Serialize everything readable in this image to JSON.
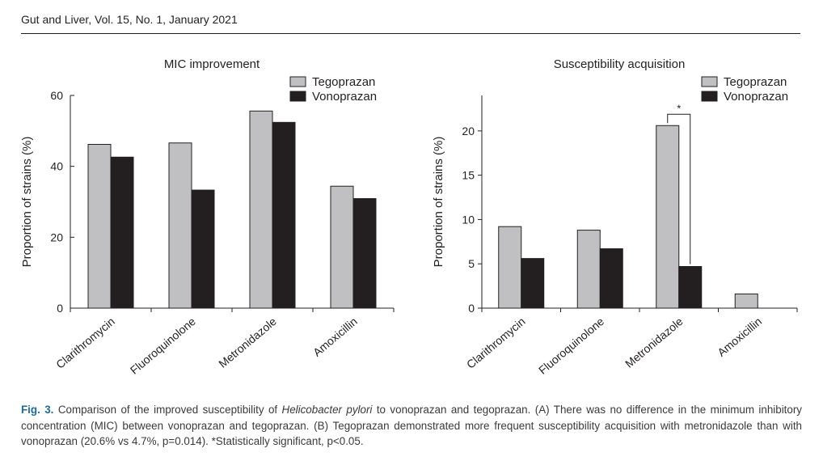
{
  "header": {
    "journal": "Gut and Liver, Vol. 15, No. 1, January 2021"
  },
  "colors": {
    "tegoprazan": "#c0c0c3",
    "vonoprazan": "#231f20",
    "caption_label": "#1a6aa5"
  },
  "chart_data": [
    {
      "type": "bar",
      "title": "MIC improvement",
      "ylabel": "Proportion of strains (%)",
      "xlabel": "",
      "categories": [
        "Clarithromycin",
        "Fluoroquinolone",
        "Metronidazole",
        "Amoxicillin"
      ],
      "series": [
        {
          "name": "Tegoprazan",
          "values": [
            46.2,
            46.6,
            55.6,
            34.4
          ]
        },
        {
          "name": "Vonoprazan",
          "values": [
            42.6,
            33.3,
            52.4,
            30.9
          ]
        }
      ],
      "ylim": [
        0,
        60
      ],
      "yticks": [
        0,
        20,
        40,
        60
      ],
      "grid": false,
      "legend_position": "top-right",
      "annotations": []
    },
    {
      "type": "bar",
      "title": "Susceptibility acquisition",
      "ylabel": "Proportion of strains (%)",
      "xlabel": "",
      "categories": [
        "Clarithromycin",
        "Fluoroquinolone",
        "Metronidazole",
        "Amoxicillin"
      ],
      "series": [
        {
          "name": "Tegoprazan",
          "values": [
            9.2,
            8.8,
            20.6,
            1.6
          ]
        },
        {
          "name": "Vonoprazan",
          "values": [
            5.6,
            6.7,
            4.7,
            0
          ]
        }
      ],
      "ylim": [
        0,
        24
      ],
      "yticks": [
        0,
        5,
        10,
        15,
        20
      ],
      "grid": false,
      "legend_position": "top-right",
      "annotations": [
        {
          "text": "*",
          "category": "Metronidazole"
        }
      ]
    }
  ],
  "caption": {
    "label": "Fig. 3.",
    "text_1": " Comparison of the improved susceptibility of ",
    "italic": "Helicobacter pylori",
    "text_2": " to vonoprazan and tegoprazan. (A) There was no difference in the minimum inhibitory concentration (MIC) between vonoprazan and tegoprazan. (B) Tegoprazan demonstrated more frequent susceptibility acquisition with metronidazole than with vonoprazan (20.6% vs 4.7%, p=0.014). *Statistically significant, p<0.05."
  }
}
